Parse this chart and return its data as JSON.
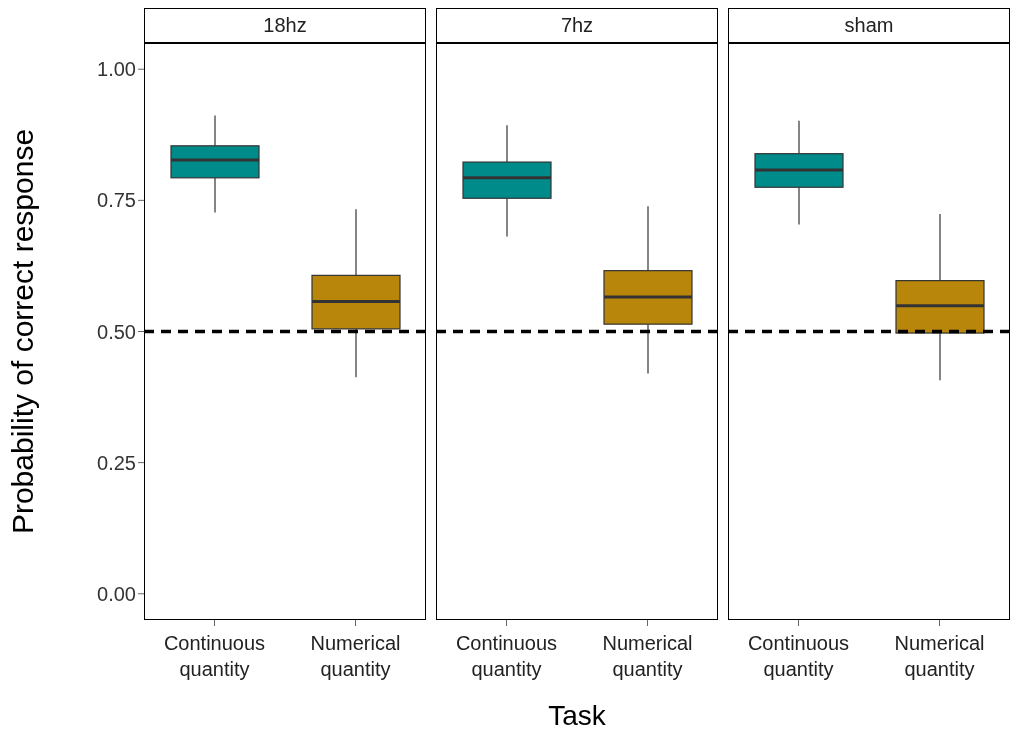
{
  "chart_data": [
    {
      "type": "box",
      "title": "18hz",
      "ylabel": "Probability of correct response",
      "categories": [
        "Continuous quantity",
        "Numerical quantity"
      ],
      "colors": [
        "#008b8b",
        "#b8860b"
      ],
      "ylim": [
        -0.05,
        1.05
      ],
      "yticks": [
        {
          "value": 0,
          "label": "0.00"
        },
        {
          "value": 0.25,
          "label": "0.25"
        },
        {
          "value": 0.5,
          "label": "0.50"
        },
        {
          "value": 0.75,
          "label": "0.75"
        },
        {
          "value": 1,
          "label": "1.00"
        }
      ],
      "grid": false,
      "ref_lines": [
        {
          "axis": "y",
          "value": 0.5,
          "color": "#000000",
          "line_style": "dashed"
        }
      ],
      "boxes": [
        {
          "low": 0.727,
          "q1": 0.793,
          "median": 0.827,
          "q3": 0.854,
          "high": 0.912
        },
        {
          "low": 0.413,
          "q1": 0.505,
          "median": 0.557,
          "q3": 0.607,
          "high": 0.733
        }
      ]
    },
    {
      "type": "box",
      "title": "7hz",
      "xlabel": "Task",
      "categories": [
        "Continuous quantity",
        "Numerical quantity"
      ],
      "colors": [
        "#008b8b",
        "#b8860b"
      ],
      "ylim": [
        -0.05,
        1.05
      ],
      "tick_labels": "x",
      "grid": false,
      "ref_lines": [
        {
          "axis": "y",
          "value": 0.5,
          "color": "#000000",
          "line_style": "dashed"
        }
      ],
      "boxes": [
        {
          "low": 0.681,
          "q1": 0.754,
          "median": 0.793,
          "q3": 0.823,
          "high": 0.893
        },
        {
          "low": 0.42,
          "q1": 0.514,
          "median": 0.566,
          "q3": 0.616,
          "high": 0.739
        }
      ]
    },
    {
      "type": "box",
      "title": "sham",
      "categories": [
        "Continuous quantity",
        "Numerical quantity"
      ],
      "colors": [
        "#008b8b",
        "#b8860b"
      ],
      "ylim": [
        -0.05,
        1.05
      ],
      "tick_labels": "x",
      "grid": false,
      "ref_lines": [
        {
          "axis": "y",
          "value": 0.5,
          "color": "#000000",
          "line_style": "dashed"
        }
      ],
      "boxes": [
        {
          "low": 0.704,
          "q1": 0.775,
          "median": 0.808,
          "q3": 0.839,
          "high": 0.902
        },
        {
          "low": 0.407,
          "q1": 0.497,
          "median": 0.549,
          "q3": 0.597,
          "high": 0.724
        }
      ]
    }
  ]
}
